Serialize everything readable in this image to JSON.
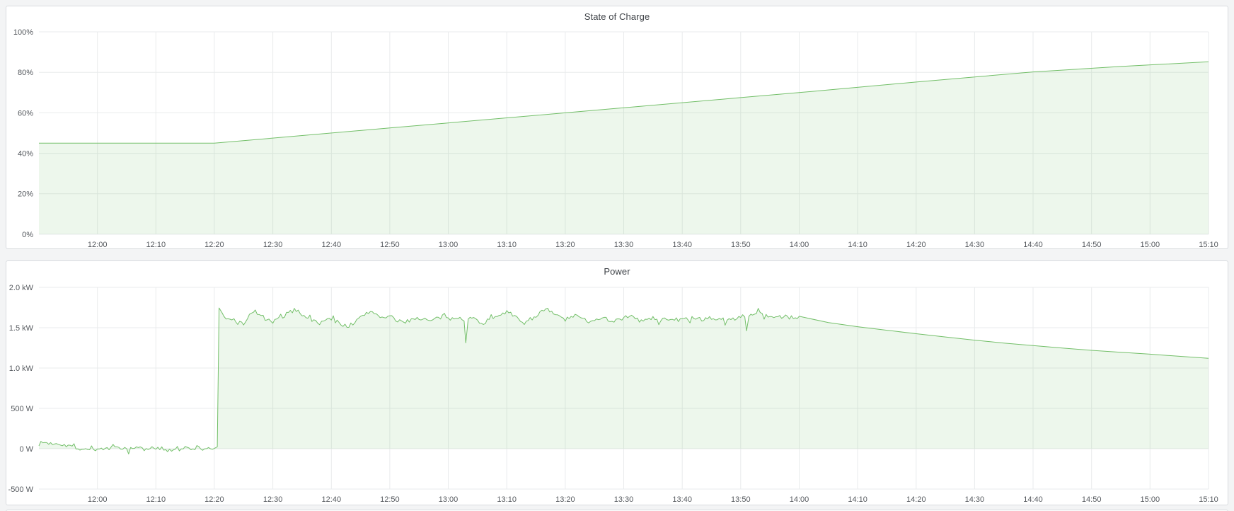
{
  "page": {
    "background": "#f3f4f5"
  },
  "colors": {
    "line_green": "#73bf69",
    "fill_green_opacity": 0.13,
    "grid": "#e9ebec",
    "tick_text": "#55595e",
    "title_text": "#3e4247",
    "panel_border": "#d9dcdf",
    "panel_background": "#ffffff"
  },
  "chart_data": [
    {
      "type": "area",
      "title": "State of Charge",
      "unit": "percent",
      "grid": true,
      "legend": "none",
      "xlim_minutes": [
        0,
        200
      ],
      "ylim": [
        0,
        100
      ],
      "x_axis": {
        "tick_minutes": [
          10,
          20,
          30,
          40,
          50,
          60,
          70,
          80,
          90,
          100,
          110,
          120,
          130,
          140,
          150,
          160,
          170,
          180,
          190,
          200
        ],
        "tick_labels": [
          "12:00",
          "12:10",
          "12:20",
          "12:30",
          "12:40",
          "12:50",
          "13:00",
          "13:10",
          "13:20",
          "13:30",
          "13:40",
          "13:50",
          "14:00",
          "14:10",
          "14:20",
          "14:30",
          "14:40",
          "14:50",
          "15:00",
          "15:10"
        ]
      },
      "y_axis": {
        "tick_values": [
          0,
          20,
          40,
          60,
          80,
          100
        ],
        "tick_labels": [
          "0%",
          "20%",
          "40%",
          "60%",
          "80%",
          "100%"
        ]
      },
      "series": [
        {
          "name": "state-of-charge",
          "color": "#73bf69",
          "fill_opacity": 0.13,
          "fill_to_value": 0,
          "points": [
            [
              0,
              45
            ],
            [
              30,
              45
            ],
            [
              60,
              52.5
            ],
            [
              90,
              60
            ],
            [
              120,
              67.5
            ],
            [
              130,
              70
            ],
            [
              150,
              75.2
            ],
            [
              170,
              80.2
            ],
            [
              185,
              82.9
            ],
            [
              200,
              85.2
            ]
          ]
        }
      ]
    },
    {
      "type": "area",
      "title": "Power",
      "unit": "watt",
      "grid": true,
      "legend": "none",
      "xlim_minutes": [
        0,
        200
      ],
      "ylim": [
        -500,
        2000
      ],
      "x_axis": {
        "tick_minutes": [
          10,
          20,
          30,
          40,
          50,
          60,
          70,
          80,
          90,
          100,
          110,
          120,
          130,
          140,
          150,
          160,
          170,
          180,
          190,
          200
        ],
        "tick_labels": [
          "12:00",
          "12:10",
          "12:20",
          "12:30",
          "12:40",
          "12:50",
          "13:00",
          "13:10",
          "13:20",
          "13:30",
          "13:40",
          "13:50",
          "14:00",
          "14:10",
          "14:20",
          "14:30",
          "14:40",
          "14:50",
          "15:00",
          "15:10"
        ]
      },
      "y_axis": {
        "tick_values": [
          -500,
          0,
          500,
          1000,
          1500,
          2000
        ],
        "tick_labels": [
          "-500 W",
          "0 W",
          "500 W",
          "1.0 kW",
          "1.5 kW",
          "2.0 kW"
        ]
      },
      "series": [
        {
          "name": "power",
          "color": "#73bf69",
          "fill_opacity": 0.13,
          "fill_to_value": 0,
          "noise": {
            "seed": 7,
            "amplitude": 26,
            "spike_chance": 0.06,
            "spike_scale": 2.6,
            "step_min": 0.34,
            "from_min": 0,
            "until_min": 130
          },
          "points": [
            [
              0,
              60
            ],
            [
              1,
              78
            ],
            [
              2,
              62
            ],
            [
              3,
              74
            ],
            [
              4,
              55
            ],
            [
              5,
              42
            ],
            [
              6,
              18
            ],
            [
              7,
              4
            ],
            [
              8,
              -10
            ],
            [
              9,
              14
            ],
            [
              10,
              -12
            ],
            [
              11,
              6
            ],
            [
              12,
              -18
            ],
            [
              13,
              24
            ],
            [
              14,
              -8
            ],
            [
              15,
              10
            ],
            [
              16,
              -16
            ],
            [
              17,
              26
            ],
            [
              18,
              -6
            ],
            [
              19,
              16
            ],
            [
              20,
              -12
            ],
            [
              21,
              8
            ],
            [
              22,
              -20
            ],
            [
              23,
              30
            ],
            [
              24,
              -10
            ],
            [
              25,
              12
            ],
            [
              26,
              -16
            ],
            [
              27,
              22
            ],
            [
              28,
              -6
            ],
            [
              29,
              12
            ],
            [
              30,
              0
            ],
            [
              30.5,
              6
            ],
            [
              30.8,
              1748
            ],
            [
              31.3,
              1665
            ],
            [
              32,
              1598
            ],
            [
              33,
              1618
            ],
            [
              34,
              1562
            ],
            [
              35,
              1548
            ],
            [
              36,
              1652
            ],
            [
              37,
              1702
            ],
            [
              38,
              1648
            ],
            [
              39,
              1595
            ],
            [
              40,
              1568
            ],
            [
              41,
              1605
            ],
            [
              42,
              1652
            ],
            [
              43,
              1700
            ],
            [
              44,
              1722
            ],
            [
              45,
              1668
            ],
            [
              46,
              1628
            ],
            [
              47,
              1578
            ],
            [
              48,
              1558
            ],
            [
              49,
              1592
            ],
            [
              50,
              1608
            ],
            [
              51,
              1572
            ],
            [
              52,
              1538
            ],
            [
              53,
              1522
            ],
            [
              54,
              1565
            ],
            [
              55,
              1622
            ],
            [
              56,
              1682
            ],
            [
              57,
              1702
            ],
            [
              58,
              1658
            ],
            [
              59,
              1618
            ],
            [
              60,
              1638
            ],
            [
              61,
              1598
            ],
            [
              62,
              1562
            ],
            [
              63,
              1588
            ],
            [
              64,
              1608
            ],
            [
              65,
              1622
            ],
            [
              66,
              1602
            ],
            [
              67,
              1582
            ],
            [
              68,
              1612
            ],
            [
              69,
              1632
            ],
            [
              70,
              1605
            ],
            [
              71,
              1618
            ],
            [
              72,
              1642
            ],
            [
              72.7,
              1608
            ],
            [
              73,
              1312
            ],
            [
              73.4,
              1602
            ],
            [
              74,
              1625
            ],
            [
              75,
              1588
            ],
            [
              76,
              1558
            ],
            [
              77,
              1598
            ],
            [
              78,
              1642
            ],
            [
              79,
              1682
            ],
            [
              80,
              1698
            ],
            [
              81,
              1652
            ],
            [
              82,
              1602
            ],
            [
              83,
              1562
            ],
            [
              84,
              1605
            ],
            [
              85,
              1652
            ],
            [
              86,
              1702
            ],
            [
              87,
              1718
            ],
            [
              88,
              1675
            ],
            [
              89,
              1635
            ],
            [
              90,
              1602
            ],
            [
              91,
              1625
            ],
            [
              92,
              1648
            ],
            [
              93,
              1608
            ],
            [
              94,
              1582
            ],
            [
              95,
              1602
            ],
            [
              96,
              1628
            ],
            [
              97,
              1605
            ],
            [
              98,
              1582
            ],
            [
              99,
              1602
            ],
            [
              100,
              1622
            ],
            [
              101,
              1642
            ],
            [
              102,
              1612
            ],
            [
              103,
              1582
            ],
            [
              104,
              1602
            ],
            [
              105,
              1615
            ],
            [
              106,
              1592
            ],
            [
              107,
              1605
            ],
            [
              108,
              1618
            ],
            [
              109,
              1600
            ],
            [
              110,
              1592
            ],
            [
              111,
              1615
            ],
            [
              112,
              1628
            ],
            [
              113,
              1602
            ],
            [
              114,
              1582
            ],
            [
              115,
              1605
            ],
            [
              116,
              1618
            ],
            [
              117,
              1600
            ],
            [
              118,
              1592
            ],
            [
              119,
              1615
            ],
            [
              120,
              1652
            ],
            [
              120.7,
              1618
            ],
            [
              121,
              1452
            ],
            [
              121.4,
              1622
            ],
            [
              122,
              1678
            ],
            [
              123,
              1698
            ],
            [
              124,
              1662
            ],
            [
              125,
              1635
            ],
            [
              126,
              1645
            ],
            [
              127,
              1625
            ],
            [
              128,
              1635
            ],
            [
              129,
              1625
            ],
            [
              130,
              1618
            ],
            [
              135,
              1563
            ],
            [
              140,
              1512
            ],
            [
              145,
              1468
            ],
            [
              150,
              1425
            ],
            [
              155,
              1385
            ],
            [
              160,
              1346
            ],
            [
              165,
              1310
            ],
            [
              170,
              1278
            ],
            [
              175,
              1247
            ],
            [
              180,
              1219
            ],
            [
              185,
              1195
            ],
            [
              190,
              1172
            ],
            [
              195,
              1146
            ],
            [
              200,
              1120
            ]
          ]
        }
      ]
    }
  ]
}
